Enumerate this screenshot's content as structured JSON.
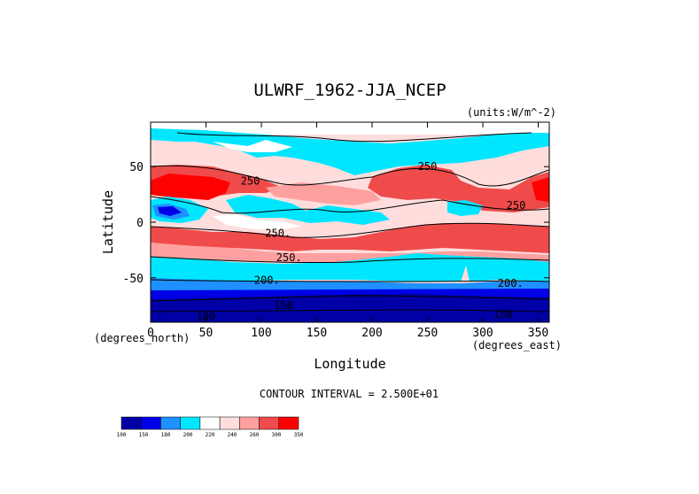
{
  "chart_data": {
    "type": "heatmap",
    "title": "ULWRF_1962-JJA_NCEP",
    "units_note": "(units:W/m^-2)",
    "xlabel": "Longitude",
    "ylabel": "Latitude",
    "x_units": "(degrees_east)",
    "y_units": "(degrees_north)",
    "xlim": [
      0,
      360
    ],
    "ylim": [
      -90,
      90
    ],
    "x_ticks": [
      "0",
      "50",
      "100",
      "150",
      "200",
      "250",
      "300",
      "350"
    ],
    "y_ticks": [
      "50",
      "0",
      "-50"
    ],
    "contour_interval_text": "CONTOUR INTERVAL = 2.500E+01",
    "contour_labels": [
      {
        "text": "250",
        "lon": 250,
        "lat": 50
      },
      {
        "text": "250",
        "lon": 90,
        "lat": 37
      },
      {
        "text": "250",
        "lon": 330,
        "lat": 15
      },
      {
        "text": "250.",
        "lon": 115,
        "lat": -10
      },
      {
        "text": "250.",
        "lon": 125,
        "lat": -32
      },
      {
        "text": "200.",
        "lon": 105,
        "lat": -52
      },
      {
        "text": "200.",
        "lon": 325,
        "lat": -55
      },
      {
        "text": "150",
        "lon": 120,
        "lat": -75
      },
      {
        "text": "150",
        "lon": 318,
        "lat": -83
      },
      {
        "text": "100",
        "lon": 50,
        "lat": -85
      }
    ],
    "colorbar": {
      "levels": [
        "100",
        "150",
        "180",
        "200",
        "220",
        "240",
        "260",
        "300",
        "350"
      ],
      "colors": [
        "#0000a6",
        "#0000e6",
        "#1e90ff",
        "#00e6ff",
        "#ffffff",
        "#ffdddd",
        "#ffa0a0",
        "#f04b4b",
        "#ff0000"
      ]
    },
    "grid": false
  }
}
